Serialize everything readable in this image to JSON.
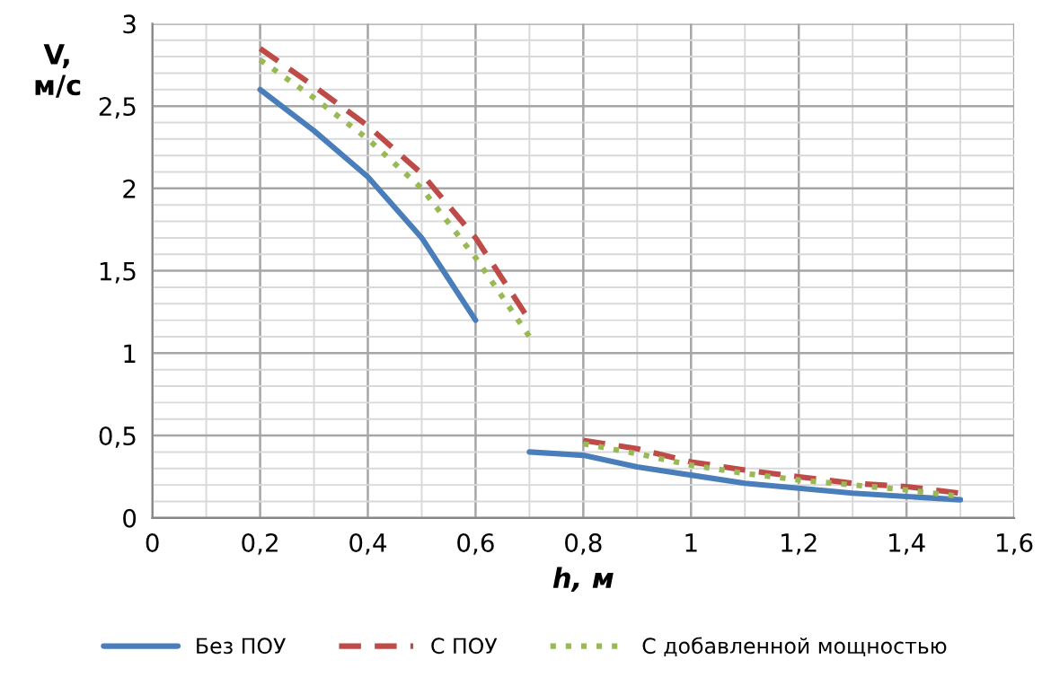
{
  "chart_data": {
    "type": "line",
    "xlabel": "h, м",
    "ylabel": "V,\nм/с",
    "xlim": [
      0,
      1.6
    ],
    "ylim": [
      0,
      3
    ],
    "xticks": [
      0,
      {
        "value": 0.2,
        "label": "0,2"
      },
      {
        "value": 0.4,
        "label": "0,4"
      },
      {
        "value": 0.6,
        "label": "0,6"
      },
      {
        "value": 0.8,
        "label": "0,8"
      },
      1,
      {
        "value": 1.2,
        "label": "1,2"
      },
      {
        "value": 1.4,
        "label": "1,4"
      },
      {
        "value": 1.6,
        "label": "1,6"
      }
    ],
    "yticks": [
      0,
      {
        "value": 0.5,
        "label": "0,5"
      },
      1,
      {
        "value": 1.5,
        "label": "1,5"
      },
      2,
      {
        "value": 2.5,
        "label": "2,5"
      },
      3
    ],
    "grid": true,
    "legend": "bottom",
    "marker": "none",
    "series": [
      {
        "name": "Без ПОУ",
        "color": "#4a7ebb",
        "line_style": "solid",
        "x": [
          0.2,
          0.3,
          0.4,
          0.5,
          0.55,
          0.6,
          0.65,
          0.7,
          0.8,
          0.9,
          1.0,
          1.1,
          1.2,
          1.3,
          1.4,
          1.5
        ],
        "values": [
          2.6,
          2.35,
          2.07,
          1.7,
          1.45,
          1.2,
          null,
          0.4,
          0.38,
          0.31,
          0.26,
          0.21,
          0.18,
          0.15,
          0.13,
          0.11
        ]
      },
      {
        "name": "С ПОУ",
        "color": "#be4b48",
        "line_style": "dashed",
        "x": [
          0.2,
          0.3,
          0.4,
          0.5,
          0.6,
          0.7,
          0.75,
          0.8,
          0.9,
          1.0,
          1.1,
          1.2,
          1.3,
          1.4,
          1.5
        ],
        "values": [
          2.85,
          2.62,
          2.38,
          2.09,
          1.7,
          1.2,
          null,
          0.47,
          0.42,
          0.34,
          0.29,
          0.25,
          0.21,
          0.19,
          0.15
        ]
      },
      {
        "name": "С добавленной мощностью",
        "color": "#98b954",
        "line_style": "dotted",
        "x": [
          0.2,
          0.3,
          0.4,
          0.5,
          0.6,
          0.7,
          0.75,
          0.8,
          0.9,
          1.0,
          1.1,
          1.2,
          1.3,
          1.4,
          1.5
        ],
        "values": [
          2.78,
          2.55,
          2.3,
          2.0,
          1.58,
          1.1,
          null,
          0.45,
          0.39,
          0.32,
          0.27,
          0.23,
          0.2,
          0.17,
          0.13
        ]
      }
    ]
  }
}
